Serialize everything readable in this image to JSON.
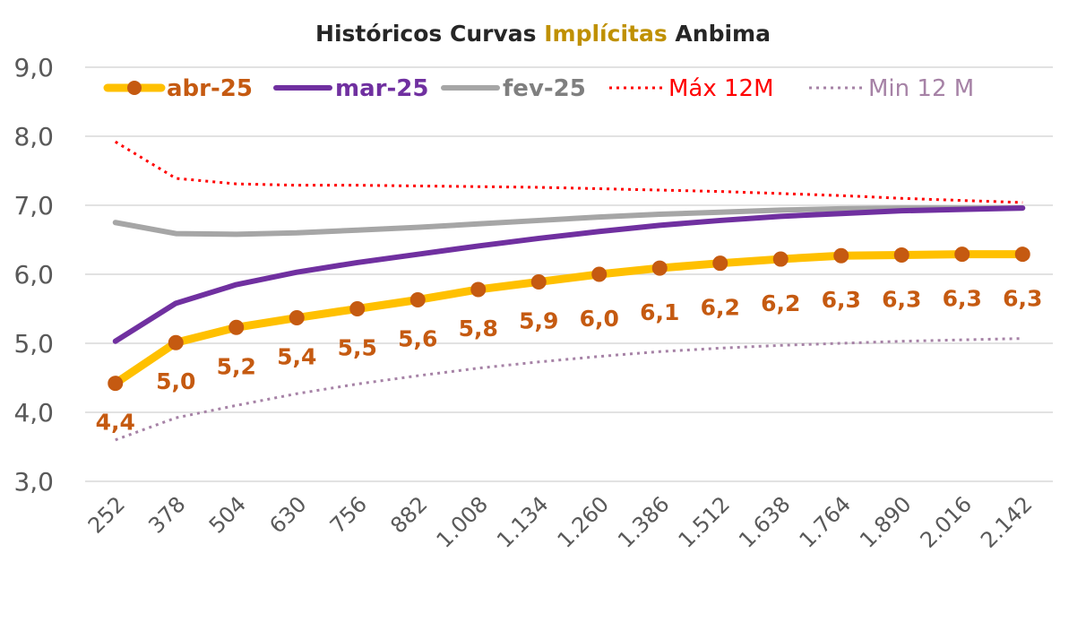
{
  "chart_data": {
    "type": "line",
    "title_parts": [
      {
        "text": "Históricos Curvas ",
        "color": "#262626"
      },
      {
        "text": "Implícitas",
        "color": "#BF9000"
      },
      {
        "text": " Anbima",
        "color": "#262626"
      }
    ],
    "x": [
      "252",
      "378",
      "504",
      "630",
      "756",
      "882",
      "1.008",
      "1.134",
      "1.260",
      "1.386",
      "1.512",
      "1.638",
      "1.764",
      "1.890",
      "2.016",
      "2.142"
    ],
    "ylim": [
      3.0,
      9.0
    ],
    "yticks": [
      "3,0",
      "4,0",
      "5,0",
      "6,0",
      "7,0",
      "8,0",
      "9,0"
    ],
    "grid": true,
    "legend_position": "top",
    "series": [
      {
        "name": "abr-25",
        "color": "#FFC000",
        "text_color": "#C55A11",
        "style": "solid-markers",
        "values": [
          4.42,
          5.01,
          5.23,
          5.37,
          5.5,
          5.63,
          5.78,
          5.89,
          6.0,
          6.09,
          6.16,
          6.22,
          6.27,
          6.28,
          6.29,
          6.29
        ],
        "labels": [
          "4,4",
          "5,0",
          "5,2",
          "5,4",
          "5,5",
          "5,6",
          "5,8",
          "5,9",
          "6,0",
          "6,1",
          "6,2",
          "6,2",
          "6,3",
          "6,3",
          "6,3",
          "6,3"
        ]
      },
      {
        "name": "mar-25",
        "color": "#7030A0",
        "text_color": "#7030A0",
        "style": "solid",
        "values": [
          5.03,
          5.58,
          5.85,
          6.03,
          6.17,
          6.29,
          6.41,
          6.52,
          6.62,
          6.71,
          6.78,
          6.84,
          6.88,
          6.92,
          6.94,
          6.96
        ]
      },
      {
        "name": "fev-25",
        "color": "#A6A6A6",
        "text_color": "#7F7F7F",
        "style": "solid",
        "values": [
          6.75,
          6.59,
          6.58,
          6.6,
          6.64,
          6.68,
          6.73,
          6.78,
          6.83,
          6.87,
          6.9,
          6.93,
          6.95,
          6.96,
          6.96,
          6.96
        ]
      },
      {
        "name": "Máx 12M",
        "color": "#FF0000",
        "text_color": "#FF0000",
        "style": "dotted",
        "values": [
          7.92,
          7.39,
          7.31,
          7.29,
          7.29,
          7.28,
          7.27,
          7.26,
          7.24,
          7.22,
          7.2,
          7.17,
          7.14,
          7.1,
          7.07,
          7.04
        ]
      },
      {
        "name": "Min 12 M",
        "color": "#A682A6",
        "text_color": "#A682A6",
        "style": "dotted",
        "values": [
          3.6,
          3.92,
          4.1,
          4.27,
          4.41,
          4.53,
          4.64,
          4.73,
          4.81,
          4.88,
          4.93,
          4.97,
          5.0,
          5.03,
          5.05,
          5.07
        ]
      }
    ]
  }
}
